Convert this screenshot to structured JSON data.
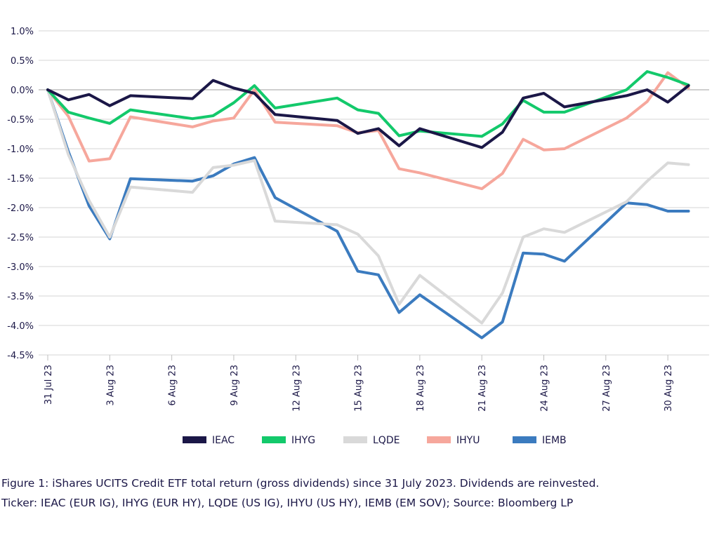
{
  "chart_data": {
    "type": "line",
    "title": "",
    "xlabel": "",
    "ylabel": "",
    "ylim": [
      -4.5,
      1.0
    ],
    "yticks": [
      1.0,
      0.5,
      0.0,
      -0.5,
      -1.0,
      -1.5,
      -2.0,
      -2.5,
      -3.0,
      -3.5,
      -4.0,
      -4.5
    ],
    "ytick_labels": [
      "1.0%",
      "0.5%",
      "0.0%",
      "-0.5%",
      "-1.0%",
      "-1.5%",
      "-2.0%",
      "-2.5%",
      "-3.0%",
      "-3.5%",
      "-4.0%",
      "-4.5%"
    ],
    "xlim": [
      "2023-07-31",
      "2023-09-01"
    ],
    "xtick_dates": [
      "2023-07-31",
      "2023-08-03",
      "2023-08-06",
      "2023-08-09",
      "2023-08-12",
      "2023-08-15",
      "2023-08-18",
      "2023-08-21",
      "2023-08-24",
      "2023-08-27",
      "2023-08-30"
    ],
    "xtick_labels": [
      "31 Jul 23",
      "3 Aug 23",
      "6 Aug 23",
      "9 Aug 23",
      "12 Aug 23",
      "15 Aug 23",
      "18 Aug 23",
      "21 Aug 23",
      "24 Aug 23",
      "27 Aug 23",
      "30 Aug 23"
    ],
    "grid": "horizontal",
    "legend_position": "bottom",
    "x": [
      "2023-07-31",
      "2023-08-01",
      "2023-08-02",
      "2023-08-03",
      "2023-08-04",
      "2023-08-07",
      "2023-08-08",
      "2023-08-09",
      "2023-08-10",
      "2023-08-11",
      "2023-08-14",
      "2023-08-15",
      "2023-08-16",
      "2023-08-17",
      "2023-08-18",
      "2023-08-21",
      "2023-08-22",
      "2023-08-23",
      "2023-08-24",
      "2023-08-25",
      "2023-08-28",
      "2023-08-29",
      "2023-08-30",
      "2023-08-31"
    ],
    "series": [
      {
        "name": "IEAC",
        "color": "#1b1747",
        "values": [
          0.0,
          -0.17,
          -0.08,
          -0.27,
          -0.1,
          -0.15,
          0.16,
          0.03,
          -0.06,
          -0.42,
          -0.52,
          -0.74,
          -0.66,
          -0.95,
          -0.66,
          -0.98,
          -0.72,
          -0.14,
          -0.06,
          -0.29,
          -0.1,
          0.0,
          -0.21,
          0.07
        ]
      },
      {
        "name": "IHYG",
        "color": "#13c96b",
        "values": [
          0.0,
          -0.38,
          -0.48,
          -0.57,
          -0.34,
          -0.49,
          -0.44,
          -0.22,
          0.07,
          -0.31,
          -0.14,
          -0.34,
          -0.4,
          -0.78,
          -0.7,
          -0.79,
          -0.58,
          -0.18,
          -0.38,
          -0.38,
          0.0,
          0.31,
          0.21,
          0.08
        ]
      },
      {
        "name": "LQDE",
        "color": "#d9d9d9",
        "values": [
          0.0,
          -1.1,
          -1.88,
          -2.5,
          -1.65,
          -1.74,
          -1.32,
          -1.28,
          -1.2,
          -2.23,
          -2.29,
          -2.45,
          -2.82,
          -3.64,
          -3.15,
          -3.96,
          -3.45,
          -2.5,
          -2.36,
          -2.42,
          -1.9,
          -1.55,
          -1.24,
          -1.27
        ]
      },
      {
        "name": "IHYU",
        "color": "#f6a79c",
        "values": [
          0.0,
          -0.45,
          -1.21,
          -1.17,
          -0.46,
          -0.63,
          -0.53,
          -0.48,
          0.0,
          -0.55,
          -0.61,
          -0.73,
          -0.69,
          -1.34,
          -1.41,
          -1.68,
          -1.42,
          -0.84,
          -1.02,
          -1.0,
          -0.48,
          -0.2,
          0.29,
          0.03
        ]
      },
      {
        "name": "IEMB",
        "color": "#3b7bbf",
        "values": [
          0.0,
          -1.05,
          -1.97,
          -2.53,
          -1.51,
          -1.55,
          -1.46,
          -1.26,
          -1.15,
          -1.83,
          -2.4,
          -3.08,
          -3.14,
          -3.78,
          -3.48,
          -4.21,
          -3.94,
          -2.77,
          -2.79,
          -2.91,
          -1.92,
          -1.95,
          -2.06,
          -2.06
        ]
      }
    ]
  },
  "caption": {
    "line1": "Figure 1: iShares UCITS Credit ETF total return (gross dividends) since 31 July 2023. Dividends are reinvested.",
    "line2": "Ticker: IEAC (EUR IG), IHYG (EUR HY), LQDE (US IG), IHYU (US HY), IEMB (EM SOV); Source: Bloomberg LP"
  }
}
